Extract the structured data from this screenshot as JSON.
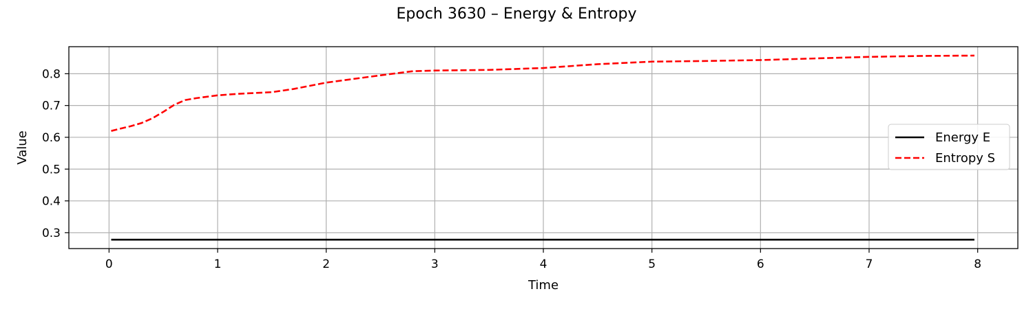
{
  "chart_data": {
    "type": "line",
    "title": "Epoch 3630 – Energy & Entropy",
    "xlabel": "Time",
    "ylabel": "Value",
    "xlim": [
      -0.37,
      8.37
    ],
    "ylim": [
      0.25,
      0.885
    ],
    "xticks": [
      0,
      1,
      2,
      3,
      4,
      5,
      6,
      7,
      8
    ],
    "yticks": [
      0.3,
      0.4,
      0.5,
      0.6,
      0.7,
      0.8
    ],
    "grid": true,
    "legend_position": "center-right",
    "series": [
      {
        "name": "Energy E",
        "color": "#000000",
        "style": "solid",
        "x": [
          0.02,
          7.97
        ],
        "y": [
          0.278,
          0.278
        ]
      },
      {
        "name": "Entropy S",
        "color": "#ff0000",
        "style": "dashed",
        "x": [
          0.02,
          0.1,
          0.2,
          0.3,
          0.4,
          0.5,
          0.6,
          0.7,
          0.8,
          1.0,
          1.2,
          1.5,
          1.7,
          2.0,
          2.5,
          2.8,
          3.0,
          3.5,
          4.0,
          4.5,
          5.0,
          5.5,
          6.0,
          6.5,
          7.0,
          7.5,
          7.97
        ],
        "y": [
          0.62,
          0.627,
          0.635,
          0.645,
          0.66,
          0.68,
          0.702,
          0.717,
          0.723,
          0.732,
          0.737,
          0.742,
          0.752,
          0.772,
          0.795,
          0.808,
          0.81,
          0.812,
          0.818,
          0.83,
          0.838,
          0.84,
          0.843,
          0.848,
          0.853,
          0.856,
          0.857
        ]
      }
    ]
  }
}
